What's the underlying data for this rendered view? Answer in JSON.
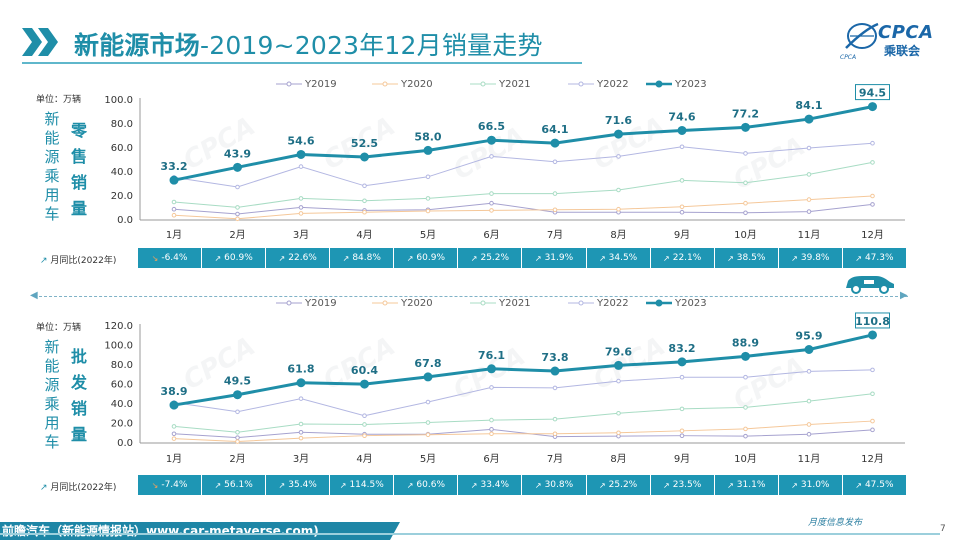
{
  "header": {
    "title_part1": "新能源市场",
    "title_part2": "-2019~2023年12月销量走势"
  },
  "logo": {
    "text": "CPCA",
    "cn": "乘联会",
    "sub": "CPCA"
  },
  "colors": {
    "accent": "#1f8ea8",
    "row_bg": "#1e96b4",
    "Y2019": "#a6a2cf",
    "Y2020": "#f5c89a",
    "Y2021": "#a8dcc4",
    "Y2022": "#b3b7e2",
    "Y2023": "#1f8ea8"
  },
  "retail": {
    "unit_label": "单位：万辆",
    "side_label_1": "新能源乘用车",
    "side_label_2": "零售销量",
    "yoy_label": "月同比(2022年)",
    "yoy": [
      "-6.4%",
      "60.9%",
      "22.6%",
      "84.8%",
      "60.9%",
      "25.2%",
      "31.9%",
      "34.5%",
      "22.1%",
      "38.5%",
      "39.8%",
      "47.3%"
    ],
    "yoy_trend": [
      "down",
      "up",
      "up",
      "up",
      "up",
      "up",
      "up",
      "up",
      "up",
      "up",
      "up",
      "up"
    ]
  },
  "wholesale": {
    "unit_label": "单位：万辆",
    "side_label_1": "新能源乘用车",
    "side_label_2": "批发销量",
    "yoy_label": "月同比(2022年)",
    "yoy": [
      "-7.4%",
      "56.1%",
      "35.4%",
      "114.5%",
      "60.6%",
      "33.4%",
      "30.8%",
      "25.2%",
      "23.5%",
      "31.1%",
      "31.0%",
      "47.5%"
    ],
    "yoy_trend": [
      "down",
      "up",
      "up",
      "up",
      "up",
      "up",
      "up",
      "up",
      "up",
      "up",
      "up",
      "up"
    ]
  },
  "footer": {
    "text": "前瞻汽车（新能源情报站）www.car-metaverse.com)",
    "monthly": "月度信息发布",
    "page": "7"
  },
  "chart_data": [
    {
      "type": "line",
      "categories": [
        "1月",
        "2月",
        "3月",
        "4月",
        "5月",
        "6月",
        "7月",
        "8月",
        "9月",
        "10月",
        "11月",
        "12月"
      ],
      "ylim": [
        0,
        100
      ],
      "yticks": [
        "0.0",
        "20.0",
        "40.0",
        "60.0",
        "80.0",
        "100.0"
      ],
      "legend_position": "top-center",
      "series": [
        {
          "name": "Y2019",
          "values": [
            9.0,
            5.0,
            10.5,
            8.0,
            8.5,
            14.0,
            6.5,
            6.5,
            6.5,
            6.0,
            7.0,
            13.0
          ]
        },
        {
          "name": "Y2020",
          "values": [
            4.0,
            1.0,
            5.5,
            6.5,
            7.5,
            8.0,
            8.5,
            9.0,
            11.0,
            14.0,
            17.0,
            20.0
          ]
        },
        {
          "name": "Y2021",
          "values": [
            15.0,
            10.5,
            18.0,
            16.0,
            18.0,
            22.0,
            22.0,
            25.0,
            33.0,
            31.0,
            38.0,
            48.0
          ]
        },
        {
          "name": "Y2022",
          "values": [
            35.5,
            27.5,
            44.5,
            28.5,
            36.0,
            53.0,
            48.5,
            53.0,
            61.0,
            55.5,
            60.0,
            64.0
          ]
        },
        {
          "name": "Y2023",
          "values": [
            33.2,
            43.9,
            54.6,
            52.5,
            58.0,
            66.5,
            64.1,
            71.6,
            74.6,
            77.2,
            84.1,
            94.5
          ],
          "labels": [
            "33.2",
            "43.9",
            "54.6",
            "52.5",
            "58.0",
            "66.5",
            "64.1",
            "71.6",
            "74.6",
            "77.2",
            "84.1",
            "94.5"
          ]
        }
      ]
    },
    {
      "type": "line",
      "categories": [
        "1月",
        "2月",
        "3月",
        "4月",
        "5月",
        "6月",
        "7月",
        "8月",
        "9月",
        "10月",
        "11月",
        "12月"
      ],
      "ylim": [
        0,
        120
      ],
      "yticks": [
        "0.0",
        "20.0",
        "40.0",
        "60.0",
        "80.0",
        "100.0",
        "120.0"
      ],
      "legend_position": "top-center",
      "series": [
        {
          "name": "Y2019",
          "values": [
            9.5,
            5.5,
            11.0,
            9.0,
            9.0,
            14.0,
            6.5,
            7.0,
            7.5,
            7.0,
            9.0,
            13.5
          ]
        },
        {
          "name": "Y2020",
          "values": [
            4.5,
            1.5,
            5.0,
            7.5,
            8.5,
            9.5,
            9.5,
            10.5,
            12.5,
            14.5,
            19.0,
            22.5
          ]
        },
        {
          "name": "Y2021",
          "values": [
            17.0,
            11.0,
            19.5,
            19.0,
            21.0,
            23.5,
            24.5,
            30.5,
            35.0,
            36.5,
            43.0,
            50.5
          ]
        },
        {
          "name": "Y2022",
          "values": [
            41.5,
            32.0,
            45.5,
            28.0,
            42.0,
            57.0,
            56.5,
            63.5,
            67.5,
            67.5,
            73.5,
            75.0
          ]
        },
        {
          "name": "Y2023",
          "values": [
            38.9,
            49.5,
            61.8,
            60.4,
            67.8,
            76.1,
            73.8,
            79.6,
            83.2,
            88.9,
            95.9,
            110.8
          ],
          "labels": [
            "38.9",
            "49.5",
            "61.8",
            "60.4",
            "67.8",
            "76.1",
            "73.8",
            "79.6",
            "83.2",
            "88.9",
            "95.9",
            "110.8"
          ]
        }
      ]
    }
  ]
}
